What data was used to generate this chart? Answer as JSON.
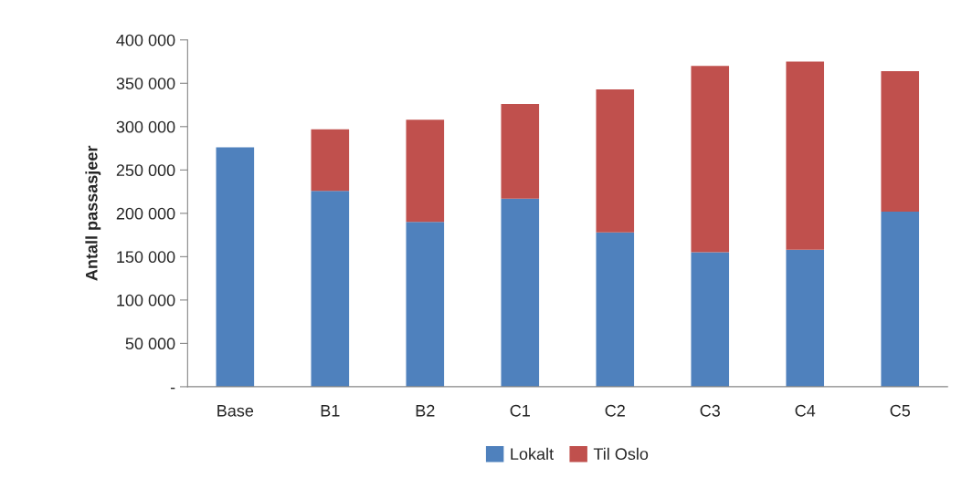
{
  "chart_data": {
    "type": "bar",
    "stacked": true,
    "ylabel": "Antall passasjeer",
    "categories": [
      "Base",
      "B1",
      "B2",
      "C1",
      "C2",
      "C3",
      "C4",
      "C5"
    ],
    "series": [
      {
        "name": "Lokalt",
        "color": "#4f81bd",
        "values": [
          276000,
          226000,
          190000,
          217000,
          178000,
          155000,
          158000,
          202000
        ]
      },
      {
        "name": "Til Oslo",
        "color": "#c0504d",
        "values": [
          null,
          71000,
          118000,
          109000,
          165000,
          215000,
          217000,
          162000
        ]
      }
    ],
    "ylim": [
      0,
      400000
    ],
    "yticks": [
      {
        "value": 0,
        "label": "-"
      },
      {
        "value": 50000,
        "label": "50 000"
      },
      {
        "value": 100000,
        "label": "100 000"
      },
      {
        "value": 150000,
        "label": "150 000"
      },
      {
        "value": 200000,
        "label": "200 000"
      },
      {
        "value": 250000,
        "label": "250 000"
      },
      {
        "value": 300000,
        "label": "300 000"
      },
      {
        "value": 350000,
        "label": "350 000"
      },
      {
        "value": 400000,
        "label": "400 000"
      }
    ],
    "grid": false,
    "legend": "bottom"
  }
}
